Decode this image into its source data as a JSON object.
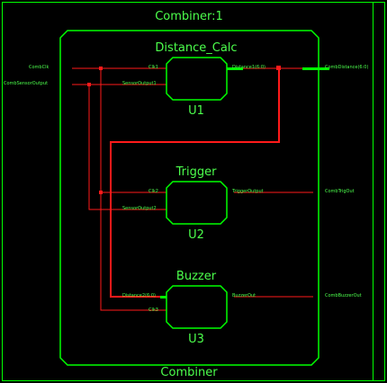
{
  "top_title": "Combiner:1",
  "bottom_title": "Combiner",
  "colors": {
    "background": "#000000",
    "outline": "#00ff00",
    "text": "#4cff4c",
    "wire": "#ff1a1a",
    "bus": "#00ff00"
  },
  "top_ports": {
    "in_clk": "CombClk",
    "in_sensor": "CombSensorOutput",
    "out_distance": "CombDistance(6:0)",
    "out_trig": "CombTrigOut",
    "out_buzzer": "CombBuzzerOut"
  },
  "blocks": [
    {
      "id": "u1",
      "name": "Distance_Calc",
      "instance": "U1",
      "pin_clk": "Clk1",
      "pin_sensor": "SensorOutput1",
      "pin_out": "Distance1(6:0)"
    },
    {
      "id": "u2",
      "name": "Trigger",
      "instance": "U2",
      "pin_clk": "Clk2",
      "pin_sensor": "SensorOutput2",
      "pin_out": "TriggerOutput"
    },
    {
      "id": "u3",
      "name": "Buzzer",
      "instance": "U3",
      "pin_in": "Distance2(6:0)",
      "pin_clk": "Clk3",
      "pin_out": "BuzzerOut"
    }
  ]
}
